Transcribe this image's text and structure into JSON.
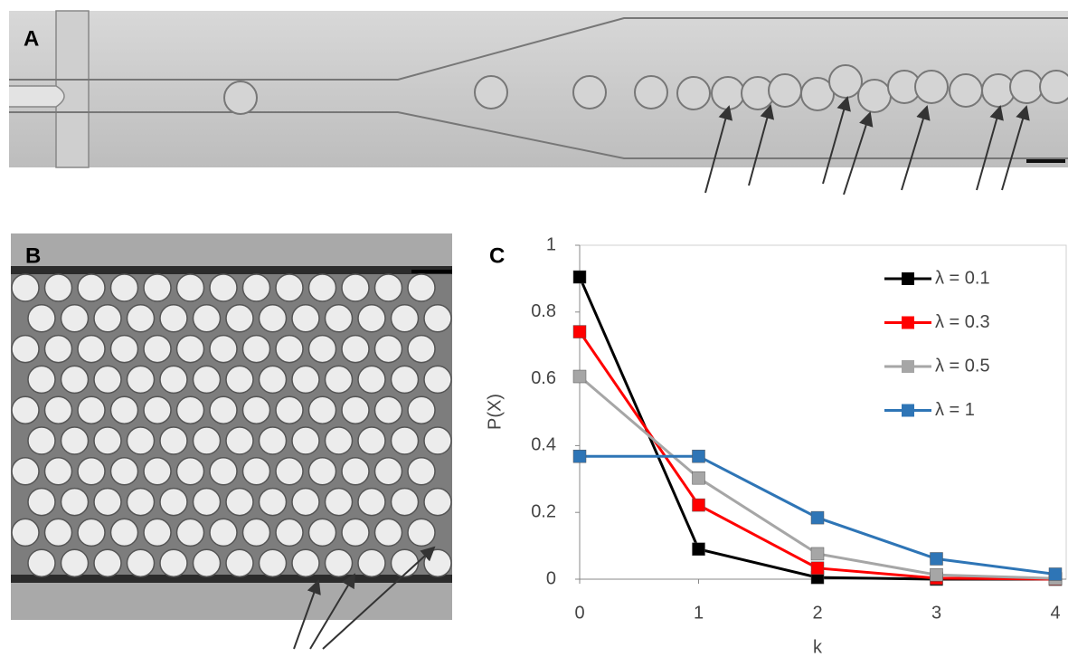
{
  "panels": [
    {
      "label": "A"
    },
    {
      "label": "B"
    },
    {
      "label": "C"
    }
  ],
  "chart_data": {
    "type": "line",
    "x_label": "k",
    "y_label": "P(X)",
    "x": [
      0,
      1,
      2,
      3,
      4
    ],
    "xlim": [
      0,
      4
    ],
    "xticks": [
      0,
      1,
      2,
      3,
      4
    ],
    "ylim": [
      0,
      1
    ],
    "yticks": [
      0,
      0.2,
      0.4,
      0.6,
      0.8,
      1
    ],
    "legend": "upper right",
    "series": [
      {
        "name": "λ = 0.1",
        "color": "#000000",
        "values": [
          0.905,
          0.09,
          0.005,
          0,
          0
        ]
      },
      {
        "name": "λ = 0.3",
        "color": "#ff0000",
        "values": [
          0.741,
          0.222,
          0.033,
          0.003,
          0
        ]
      },
      {
        "name": "λ = 0.5",
        "color": "#a6a6a6",
        "values": [
          0.607,
          0.303,
          0.076,
          0.013,
          0.002
        ]
      },
      {
        "name": "λ = 1",
        "color": "#2e75b6",
        "values": [
          0.368,
          0.368,
          0.184,
          0.061,
          0.015
        ]
      }
    ]
  }
}
